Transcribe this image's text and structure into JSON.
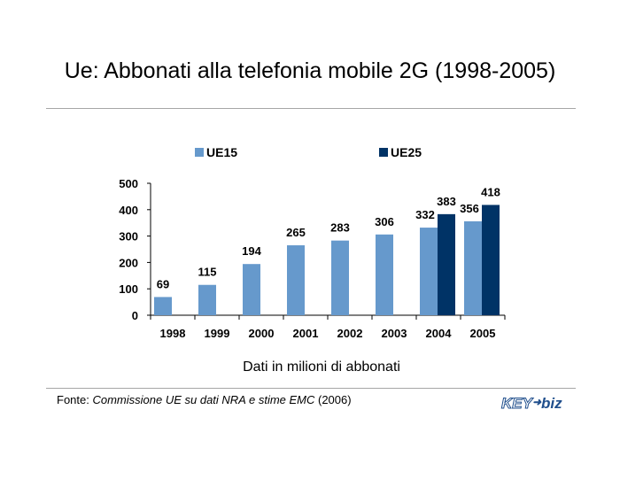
{
  "title": "Ue: Abbonati alla telefonia mobile 2G (1998-2005)",
  "caption": "Dati in milioni di abbonati",
  "source": {
    "prefix": "Fonte: ",
    "italic": "Commissione UE su dati NRA e stime EMC",
    "suffix": " (2006)"
  },
  "logo": {
    "part1": "KEY",
    "part2": "biz",
    "alt": "KEY4biz logo"
  },
  "chart_data": {
    "type": "bar",
    "title": "",
    "xlabel": "",
    "ylabel": "",
    "ylim": [
      0,
      500
    ],
    "yticks": [
      0,
      100,
      200,
      300,
      400,
      500
    ],
    "grid": false,
    "legend_position": "top",
    "categories": [
      "1998",
      "1999",
      "2000",
      "2001",
      "2002",
      "2003",
      "2004",
      "2005"
    ],
    "series": [
      {
        "name": "UE15",
        "color": "#6699cc",
        "values": [
          69,
          115,
          194,
          265,
          283,
          306,
          332,
          356
        ]
      },
      {
        "name": "UE25",
        "color": "#003366",
        "values": [
          null,
          null,
          null,
          null,
          null,
          null,
          383,
          418
        ]
      }
    ]
  }
}
